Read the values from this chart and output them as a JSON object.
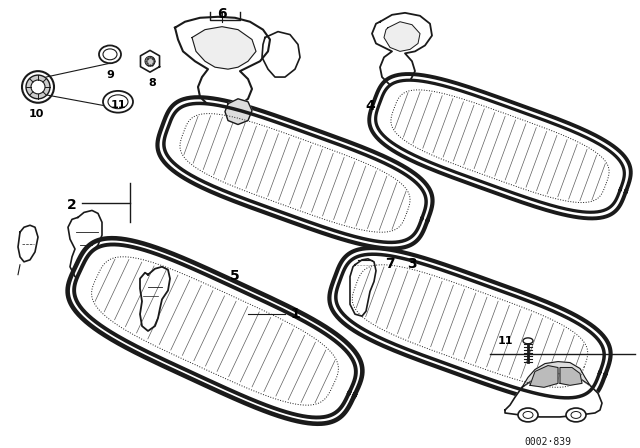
{
  "bg_color": "#ffffff",
  "line_color": "#1a1a1a",
  "fig_width": 6.4,
  "fig_height": 4.48,
  "dpi": 100,
  "watermark": "0002·839"
}
